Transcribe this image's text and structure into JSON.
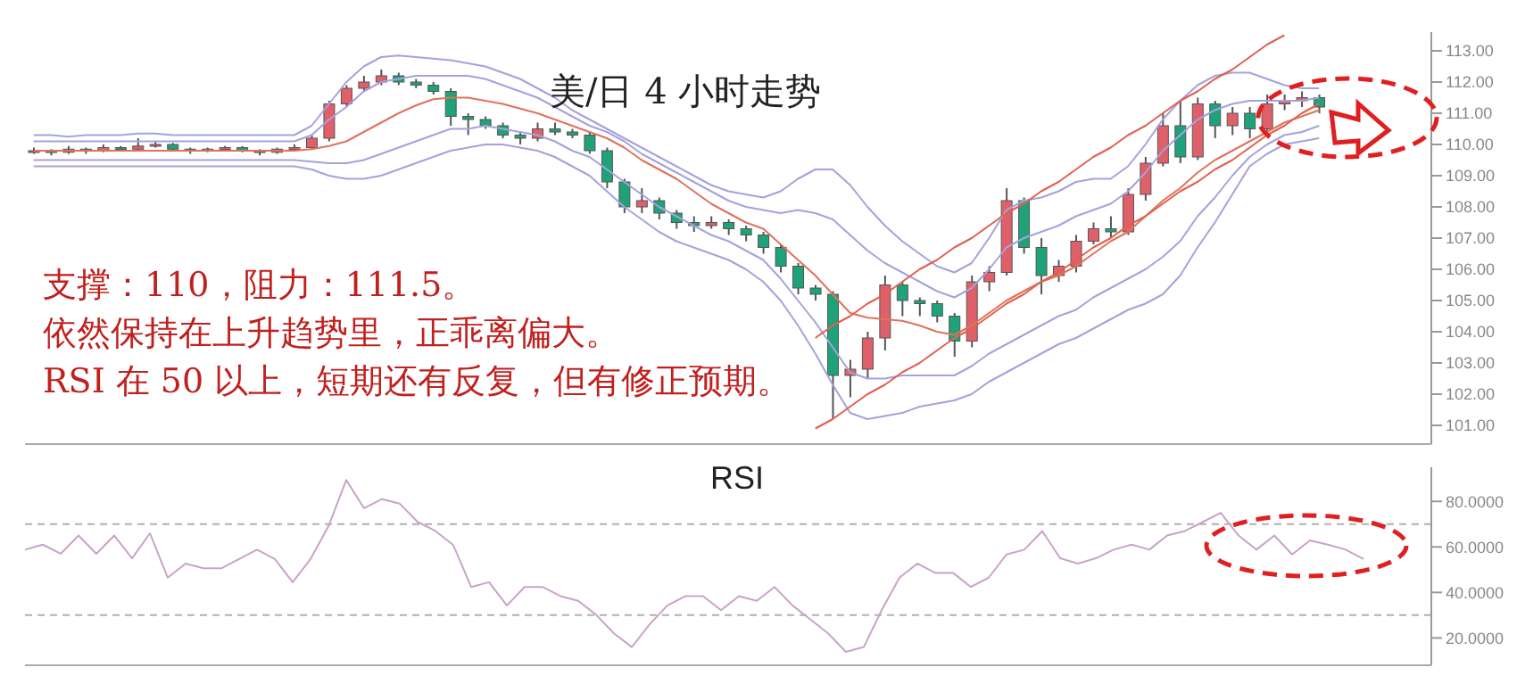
{
  "chart_data": [
    {
      "type": "candlestick",
      "title": "美/日 4 小时走势",
      "annotations": [
        "支撑：110，阻力：111.5。",
        "依然保持在上升趋势里，正乖离偏大。",
        "RSI 在 50 以上，短期还有反复，但有修正预期。"
      ],
      "categories": [
        null,
        null,
        null,
        null,
        null,
        null,
        null,
        null,
        null,
        null,
        null,
        null,
        null,
        null,
        null,
        null,
        null,
        null,
        null,
        null,
        null,
        null,
        null,
        null,
        null,
        null,
        null,
        null,
        null,
        null,
        null,
        null,
        null,
        null,
        null,
        null,
        null,
        null,
        null,
        null,
        null,
        null,
        null,
        null,
        null,
        null,
        null,
        null,
        null,
        null,
        null,
        null,
        null,
        null,
        null,
        null,
        null,
        null,
        null,
        null,
        null,
        null,
        null,
        null,
        null,
        null,
        null,
        null,
        null,
        null,
        null,
        null,
        null,
        null,
        null
      ],
      "ylim": [
        100.4,
        113.6
      ],
      "yticks": [
        {
          "value": 101,
          "label": "101.00"
        },
        {
          "value": 102,
          "label": "102.00"
        },
        {
          "value": 103,
          "label": "103.00"
        },
        {
          "value": 104,
          "label": "104.00"
        },
        {
          "value": 105,
          "label": "105.00"
        },
        {
          "value": 106,
          "label": "106.00"
        },
        {
          "value": 107,
          "label": "107.00"
        },
        {
          "value": 108,
          "label": "108.00"
        },
        {
          "value": 109,
          "label": "109.00"
        },
        {
          "value": 110,
          "label": "110.00"
        },
        {
          "value": 111,
          "label": "111.00"
        },
        {
          "value": 112,
          "label": "112.00"
        },
        {
          "value": 113,
          "label": "113.00"
        }
      ],
      "series": [
        {
          "ohlc": [
            [
              109.75,
              109.9,
              109.7,
              109.8
            ],
            [
              109.8,
              109.85,
              109.65,
              109.75
            ],
            [
              109.75,
              109.95,
              109.7,
              109.85
            ],
            [
              109.85,
              109.9,
              109.7,
              109.8
            ],
            [
              109.8,
              110.0,
              109.75,
              109.9
            ],
            [
              109.9,
              109.95,
              109.8,
              109.85
            ],
            [
              109.85,
              110.2,
              109.8,
              109.95
            ],
            [
              109.95,
              110.1,
              109.9,
              110.0
            ],
            [
              110.0,
              110.05,
              109.8,
              109.85
            ],
            [
              109.85,
              109.9,
              109.7,
              109.8
            ],
            [
              109.8,
              109.9,
              109.75,
              109.85
            ],
            [
              109.85,
              109.95,
              109.8,
              109.9
            ],
            [
              109.9,
              109.95,
              109.75,
              109.8
            ],
            [
              109.8,
              109.85,
              109.65,
              109.75
            ],
            [
              109.75,
              109.9,
              109.7,
              109.85
            ],
            [
              109.85,
              110.0,
              109.8,
              109.9
            ],
            [
              109.9,
              110.3,
              109.85,
              110.2
            ],
            [
              110.2,
              111.4,
              110.1,
              111.3
            ],
            [
              111.3,
              111.9,
              111.2,
              111.8
            ],
            [
              111.8,
              112.2,
              111.7,
              112.0
            ],
            [
              112.0,
              112.4,
              111.9,
              112.2
            ],
            [
              112.2,
              112.3,
              111.9,
              112.0
            ],
            [
              112.0,
              112.1,
              111.8,
              111.9
            ],
            [
              111.9,
              112.0,
              111.6,
              111.7
            ],
            [
              111.7,
              111.8,
              110.6,
              110.9
            ],
            [
              110.9,
              111.0,
              110.3,
              110.8
            ],
            [
              110.8,
              110.9,
              110.5,
              110.6
            ],
            [
              110.6,
              110.7,
              110.2,
              110.3
            ],
            [
              110.3,
              110.4,
              110.0,
              110.2
            ],
            [
              110.2,
              110.7,
              110.1,
              110.5
            ],
            [
              110.5,
              110.7,
              110.3,
              110.4
            ],
            [
              110.4,
              110.5,
              110.2,
              110.3
            ],
            [
              110.3,
              110.4,
              109.7,
              109.8
            ],
            [
              109.8,
              109.9,
              108.6,
              108.8
            ],
            [
              108.8,
              108.9,
              107.8,
              108.0
            ],
            [
              108.0,
              108.6,
              107.8,
              108.2
            ],
            [
              108.2,
              108.3,
              107.6,
              107.8
            ],
            [
              107.8,
              107.9,
              107.3,
              107.5
            ],
            [
              107.5,
              107.7,
              107.2,
              107.4
            ],
            [
              107.4,
              107.7,
              107.3,
              107.5
            ],
            [
              107.5,
              107.6,
              107.1,
              107.3
            ],
            [
              107.3,
              107.4,
              106.9,
              107.1
            ],
            [
              107.1,
              107.2,
              106.5,
              106.7
            ],
            [
              106.7,
              106.8,
              105.9,
              106.1
            ],
            [
              106.1,
              106.2,
              105.2,
              105.4
            ],
            [
              105.4,
              105.5,
              105.0,
              105.2
            ],
            [
              105.2,
              105.3,
              101.2,
              102.6
            ],
            [
              102.6,
              103.1,
              101.9,
              102.8
            ],
            [
              102.8,
              104.0,
              102.5,
              103.8
            ],
            [
              103.8,
              105.8,
              103.4,
              105.5
            ],
            [
              105.5,
              105.6,
              104.5,
              105.0
            ],
            [
              105.0,
              105.1,
              104.5,
              104.9
            ],
            [
              104.9,
              105.0,
              104.3,
              104.5
            ],
            [
              104.5,
              104.6,
              103.2,
              103.7
            ],
            [
              103.7,
              105.8,
              103.5,
              105.6
            ],
            [
              105.6,
              106.1,
              105.3,
              105.9
            ],
            [
              105.9,
              108.6,
              105.8,
              108.2
            ],
            [
              108.2,
              108.3,
              106.5,
              106.7
            ],
            [
              106.7,
              107.0,
              105.2,
              105.8
            ],
            [
              105.8,
              106.3,
              105.6,
              106.1
            ],
            [
              106.1,
              107.1,
              105.9,
              106.9
            ],
            [
              106.9,
              107.5,
              106.8,
              107.3
            ],
            [
              107.3,
              107.7,
              107.0,
              107.2
            ],
            [
              107.2,
              108.6,
              107.1,
              108.4
            ],
            [
              108.4,
              109.6,
              108.2,
              109.4
            ],
            [
              109.4,
              111.0,
              109.3,
              110.6
            ],
            [
              110.6,
              111.4,
              109.4,
              109.6
            ],
            [
              109.6,
              111.5,
              109.5,
              111.3
            ],
            [
              111.3,
              111.4,
              110.2,
              110.6
            ],
            [
              110.6,
              111.2,
              110.3,
              111.0
            ],
            [
              111.0,
              111.2,
              110.2,
              110.5
            ],
            [
              110.5,
              111.6,
              110.4,
              111.3
            ],
            [
              111.3,
              111.6,
              111.1,
              111.4
            ],
            [
              111.4,
              111.7,
              111.2,
              111.5
            ],
            [
              111.5,
              111.6,
              111.0,
              111.2
            ]
          ],
          "colors": [
            "#e0606a",
            "#1fa27a",
            "#e0606a",
            "#1fa27a",
            "#e0606a",
            "#1fa27a",
            "#e0606a",
            "#e0606a",
            "#1fa27a",
            "#1fa27a",
            "#e0606a",
            "#e0606a",
            "#1fa27a",
            "#1fa27a",
            "#e0606a",
            "#e0606a",
            "#e0606a",
            "#e0606a",
            "#e0606a",
            "#e0606a",
            "#e0606a",
            "#1fa27a",
            "#1fa27a",
            "#1fa27a",
            "#1fa27a",
            "#1fa27a",
            "#1fa27a",
            "#1fa27a",
            "#1fa27a",
            "#e0606a",
            "#1fa27a",
            "#1fa27a",
            "#1fa27a",
            "#1fa27a",
            "#1fa27a",
            "#e0606a",
            "#1fa27a",
            "#1fa27a",
            "#1fa27a",
            "#e0606a",
            "#1fa27a",
            "#1fa27a",
            "#1fa27a",
            "#1fa27a",
            "#1fa27a",
            "#1fa27a",
            "#1fa27a",
            "#e0606a",
            "#e0606a",
            "#e0606a",
            "#1fa27a",
            "#1fa27a",
            "#1fa27a",
            "#1fa27a",
            "#e0606a",
            "#e0606a",
            "#e0606a",
            "#1fa27a",
            "#1fa27a",
            "#e0606a",
            "#e0606a",
            "#e0606a",
            "#1fa27a",
            "#e0606a",
            "#e0606a",
            "#e0606a",
            "#1fa27a",
            "#e0606a",
            "#1fa27a",
            "#e0606a",
            "#1fa27a",
            "#e0606a",
            "#e0606a",
            "#e0606a",
            "#1fa27a"
          ]
        },
        {
          "type": "line",
          "color": "#a3a3dc",
          "values": [
            110.3,
            110.3,
            110.25,
            110.3,
            110.3,
            110.3,
            110.35,
            110.35,
            110.3,
            110.3,
            110.3,
            110.3,
            110.3,
            110.3,
            110.3,
            110.3,
            110.6,
            111.3,
            112.0,
            112.5,
            112.8,
            112.85,
            112.8,
            112.75,
            112.7,
            112.6,
            112.5,
            112.3,
            112.1,
            111.8,
            111.5,
            111.1,
            110.8,
            110.5,
            110.2,
            109.9,
            109.6,
            109.3,
            109.0,
            108.7,
            108.5,
            108.4,
            108.3,
            108.5,
            108.9,
            109.2,
            109.2,
            108.7,
            108.0,
            107.4,
            106.9,
            106.5,
            106.1,
            105.9,
            106.2,
            107.0,
            107.9,
            108.2,
            108.3,
            108.5,
            108.8,
            108.9,
            108.9,
            109.3,
            110.0,
            110.8,
            111.4,
            111.9,
            112.2,
            112.3,
            112.3,
            112.1,
            111.9,
            111.8,
            111.8
          ]
        },
        {
          "type": "line",
          "color": "#a3a3dc",
          "values": [
            110.1,
            110.1,
            110.1,
            110.1,
            110.1,
            110.1,
            110.1,
            110.1,
            110.1,
            110.1,
            110.1,
            110.1,
            110.1,
            110.1,
            110.1,
            110.1,
            110.3,
            110.8,
            111.2,
            111.7,
            112.0,
            112.1,
            112.2,
            112.2,
            112.2,
            112.2,
            112.1,
            111.9,
            111.7,
            111.5,
            111.2,
            110.9,
            110.6,
            110.4,
            110.1,
            109.7,
            109.4,
            109.1,
            108.8,
            108.5,
            108.2,
            108.0,
            107.9,
            107.8,
            107.9,
            107.8,
            107.6,
            107.1,
            106.6,
            106.2,
            105.9,
            105.6,
            105.3,
            105.1,
            105.4,
            106.0,
            106.7,
            107.0,
            107.2,
            107.4,
            107.7,
            107.9,
            108.1,
            108.5,
            109.1,
            109.8,
            110.3,
            110.8,
            111.1,
            111.3,
            111.4,
            111.4,
            111.4,
            111.4,
            111.5
          ]
        },
        {
          "type": "line",
          "color": "#e0725a",
          "values": [
            109.8,
            109.8,
            109.8,
            109.8,
            109.8,
            109.8,
            109.8,
            109.8,
            109.8,
            109.8,
            109.8,
            109.8,
            109.8,
            109.8,
            109.8,
            109.8,
            109.85,
            109.95,
            110.1,
            110.4,
            110.7,
            111.0,
            111.25,
            111.45,
            111.5,
            111.5,
            111.4,
            111.3,
            111.15,
            111.0,
            110.8,
            110.6,
            110.4,
            110.2,
            109.9,
            109.5,
            109.2,
            108.9,
            108.5,
            108.1,
            107.8,
            107.5,
            107.3,
            106.8,
            106.3,
            105.8,
            105.2,
            104.6,
            104.45,
            104.4,
            104.35,
            104.2,
            104.0,
            103.9,
            104.2,
            104.6,
            105.0,
            105.3,
            105.6,
            105.8,
            106.1,
            106.5,
            106.9,
            107.2,
            107.7,
            108.2,
            108.6,
            109.1,
            109.5,
            109.8,
            110.1,
            110.4,
            110.7,
            110.9,
            111.1
          ]
        },
        {
          "type": "line",
          "color": "#a3a3dc",
          "values": [
            109.5,
            109.5,
            109.5,
            109.5,
            109.5,
            109.5,
            109.5,
            109.5,
            109.5,
            109.5,
            109.5,
            109.5,
            109.5,
            109.5,
            109.5,
            109.5,
            109.45,
            109.4,
            109.4,
            109.5,
            109.7,
            109.9,
            110.1,
            110.3,
            110.5,
            110.5,
            110.6,
            110.5,
            110.4,
            110.3,
            110.1,
            109.8,
            109.6,
            109.2,
            108.8,
            108.4,
            108.0,
            107.7,
            107.4,
            107.1,
            106.9,
            106.6,
            106.3,
            105.7,
            105.0,
            104.3,
            103.5,
            102.7,
            102.5,
            102.5,
            102.6,
            102.6,
            102.6,
            102.6,
            102.9,
            103.3,
            103.6,
            103.9,
            104.2,
            104.5,
            104.7,
            105.1,
            105.4,
            105.7,
            106.0,
            106.4,
            106.9,
            107.7,
            108.3,
            109.0,
            109.6,
            110.0,
            110.3,
            110.4,
            110.6
          ]
        },
        {
          "type": "line",
          "color": "#a3a3dc",
          "values": [
            109.3,
            109.3,
            109.3,
            109.3,
            109.3,
            109.3,
            109.3,
            109.3,
            109.3,
            109.3,
            109.3,
            109.3,
            109.3,
            109.3,
            109.3,
            109.3,
            109.2,
            109.0,
            108.9,
            108.9,
            109.0,
            109.2,
            109.4,
            109.6,
            109.8,
            109.9,
            110.0,
            110.0,
            109.9,
            109.8,
            109.6,
            109.3,
            109.0,
            108.5,
            108.0,
            107.6,
            107.2,
            106.9,
            106.7,
            106.5,
            106.3,
            106.0,
            105.6,
            105.0,
            104.2,
            103.3,
            102.3,
            101.4,
            101.2,
            101.3,
            101.4,
            101.6,
            101.7,
            101.8,
            102.0,
            102.4,
            102.7,
            103.0,
            103.3,
            103.6,
            103.8,
            104.1,
            104.4,
            104.7,
            104.9,
            105.2,
            105.8,
            106.7,
            107.5,
            108.4,
            109.3,
            109.7,
            110.0,
            110.1,
            110.2
          ]
        },
        {
          "type": "line",
          "color": "#e0604e",
          "values": [
            null,
            null,
            null,
            null,
            null,
            null,
            null,
            null,
            null,
            null,
            null,
            null,
            null,
            null,
            null,
            null,
            null,
            null,
            null,
            null,
            null,
            null,
            null,
            null,
            null,
            null,
            null,
            null,
            null,
            null,
            null,
            null,
            null,
            null,
            null,
            null,
            null,
            null,
            null,
            null,
            null,
            null,
            null,
            null,
            null,
            103.8,
            104.2,
            104.5,
            104.9,
            105.2,
            105.6,
            106.0,
            106.3,
            106.7,
            107.0,
            107.4,
            107.8,
            108.1,
            108.5,
            108.8,
            109.2,
            109.6,
            109.9,
            110.3,
            110.6,
            111.0,
            111.4,
            111.7,
            112.1,
            112.4,
            112.8,
            113.2,
            113.5,
            null,
            null
          ]
        },
        {
          "type": "line",
          "color": "#e0604e",
          "values": [
            null,
            null,
            null,
            null,
            null,
            null,
            null,
            null,
            null,
            null,
            null,
            null,
            null,
            null,
            null,
            null,
            null,
            null,
            null,
            null,
            null,
            null,
            null,
            null,
            null,
            null,
            null,
            null,
            null,
            null,
            null,
            null,
            null,
            null,
            null,
            null,
            null,
            null,
            null,
            null,
            null,
            null,
            null,
            null,
            null,
            100.9,
            101.2,
            101.6,
            102.0,
            102.3,
            102.7,
            103.0,
            103.4,
            103.8,
            104.1,
            104.5,
            104.9,
            105.2,
            105.6,
            105.9,
            106.3,
            106.7,
            107.0,
            107.4,
            107.7,
            108.1,
            108.5,
            108.8,
            109.2,
            109.5,
            109.9,
            110.3,
            110.6,
            111.0,
            111.3
          ]
        }
      ]
    },
    {
      "type": "line",
      "title": "RSI",
      "categories": [
        null,
        null,
        null,
        null,
        null,
        null,
        null,
        null,
        null,
        null,
        null,
        null,
        null,
        null,
        null,
        null,
        null,
        null,
        null,
        null,
        null,
        null,
        null,
        null,
        null,
        null,
        null,
        null,
        null,
        null,
        null,
        null,
        null,
        null,
        null,
        null,
        null,
        null,
        null,
        null,
        null,
        null,
        null,
        null,
        null,
        null,
        null,
        null,
        null,
        null,
        null,
        null,
        null,
        null,
        null,
        null,
        null,
        null,
        null,
        null,
        null,
        null,
        null,
        null,
        null,
        null,
        null,
        null,
        null,
        null,
        null,
        null,
        null,
        null,
        null,
        null
      ],
      "ylim": [
        8,
        95
      ],
      "yticks": [
        {
          "value": 20,
          "label": "20.0000"
        },
        {
          "value": 40,
          "label": "40.0000"
        },
        {
          "value": 60,
          "label": "60.0000"
        },
        {
          "value": 80,
          "label": "80.0000"
        }
      ],
      "ref_lines": [
        {
          "axis": "y",
          "value": 70,
          "color": "#b0b0b0",
          "line_style": "dashed"
        },
        {
          "axis": "y",
          "value": 30,
          "color": "#b0b0b0",
          "line_style": "dashed"
        }
      ],
      "series": [
        {
          "color": "#c9a3c9",
          "values": [
            58.8,
            61,
            57,
            65,
            57,
            65,
            55,
            66,
            46.5,
            52.7,
            50.6,
            50.6,
            54.7,
            58.8,
            54.7,
            44.5,
            54.7,
            69,
            89.4,
            77,
            81,
            79,
            71,
            67,
            60.8,
            42.4,
            44.5,
            34.3,
            42.4,
            42.4,
            38.4,
            36.3,
            30.2,
            22,
            16,
            26,
            34.3,
            38.4,
            38.4,
            32.2,
            38.4,
            36.3,
            42.4,
            34.3,
            28.2,
            22,
            13.9,
            16,
            32.2,
            46.5,
            52.7,
            48.6,
            48.6,
            42.4,
            46.5,
            56.7,
            58.8,
            67,
            55,
            52.7,
            55,
            58.8,
            61,
            58.8,
            65,
            67,
            71,
            75,
            65,
            58.8,
            65,
            56.7,
            62.9,
            61,
            58.8,
            54.7
          ]
        }
      ]
    }
  ]
}
